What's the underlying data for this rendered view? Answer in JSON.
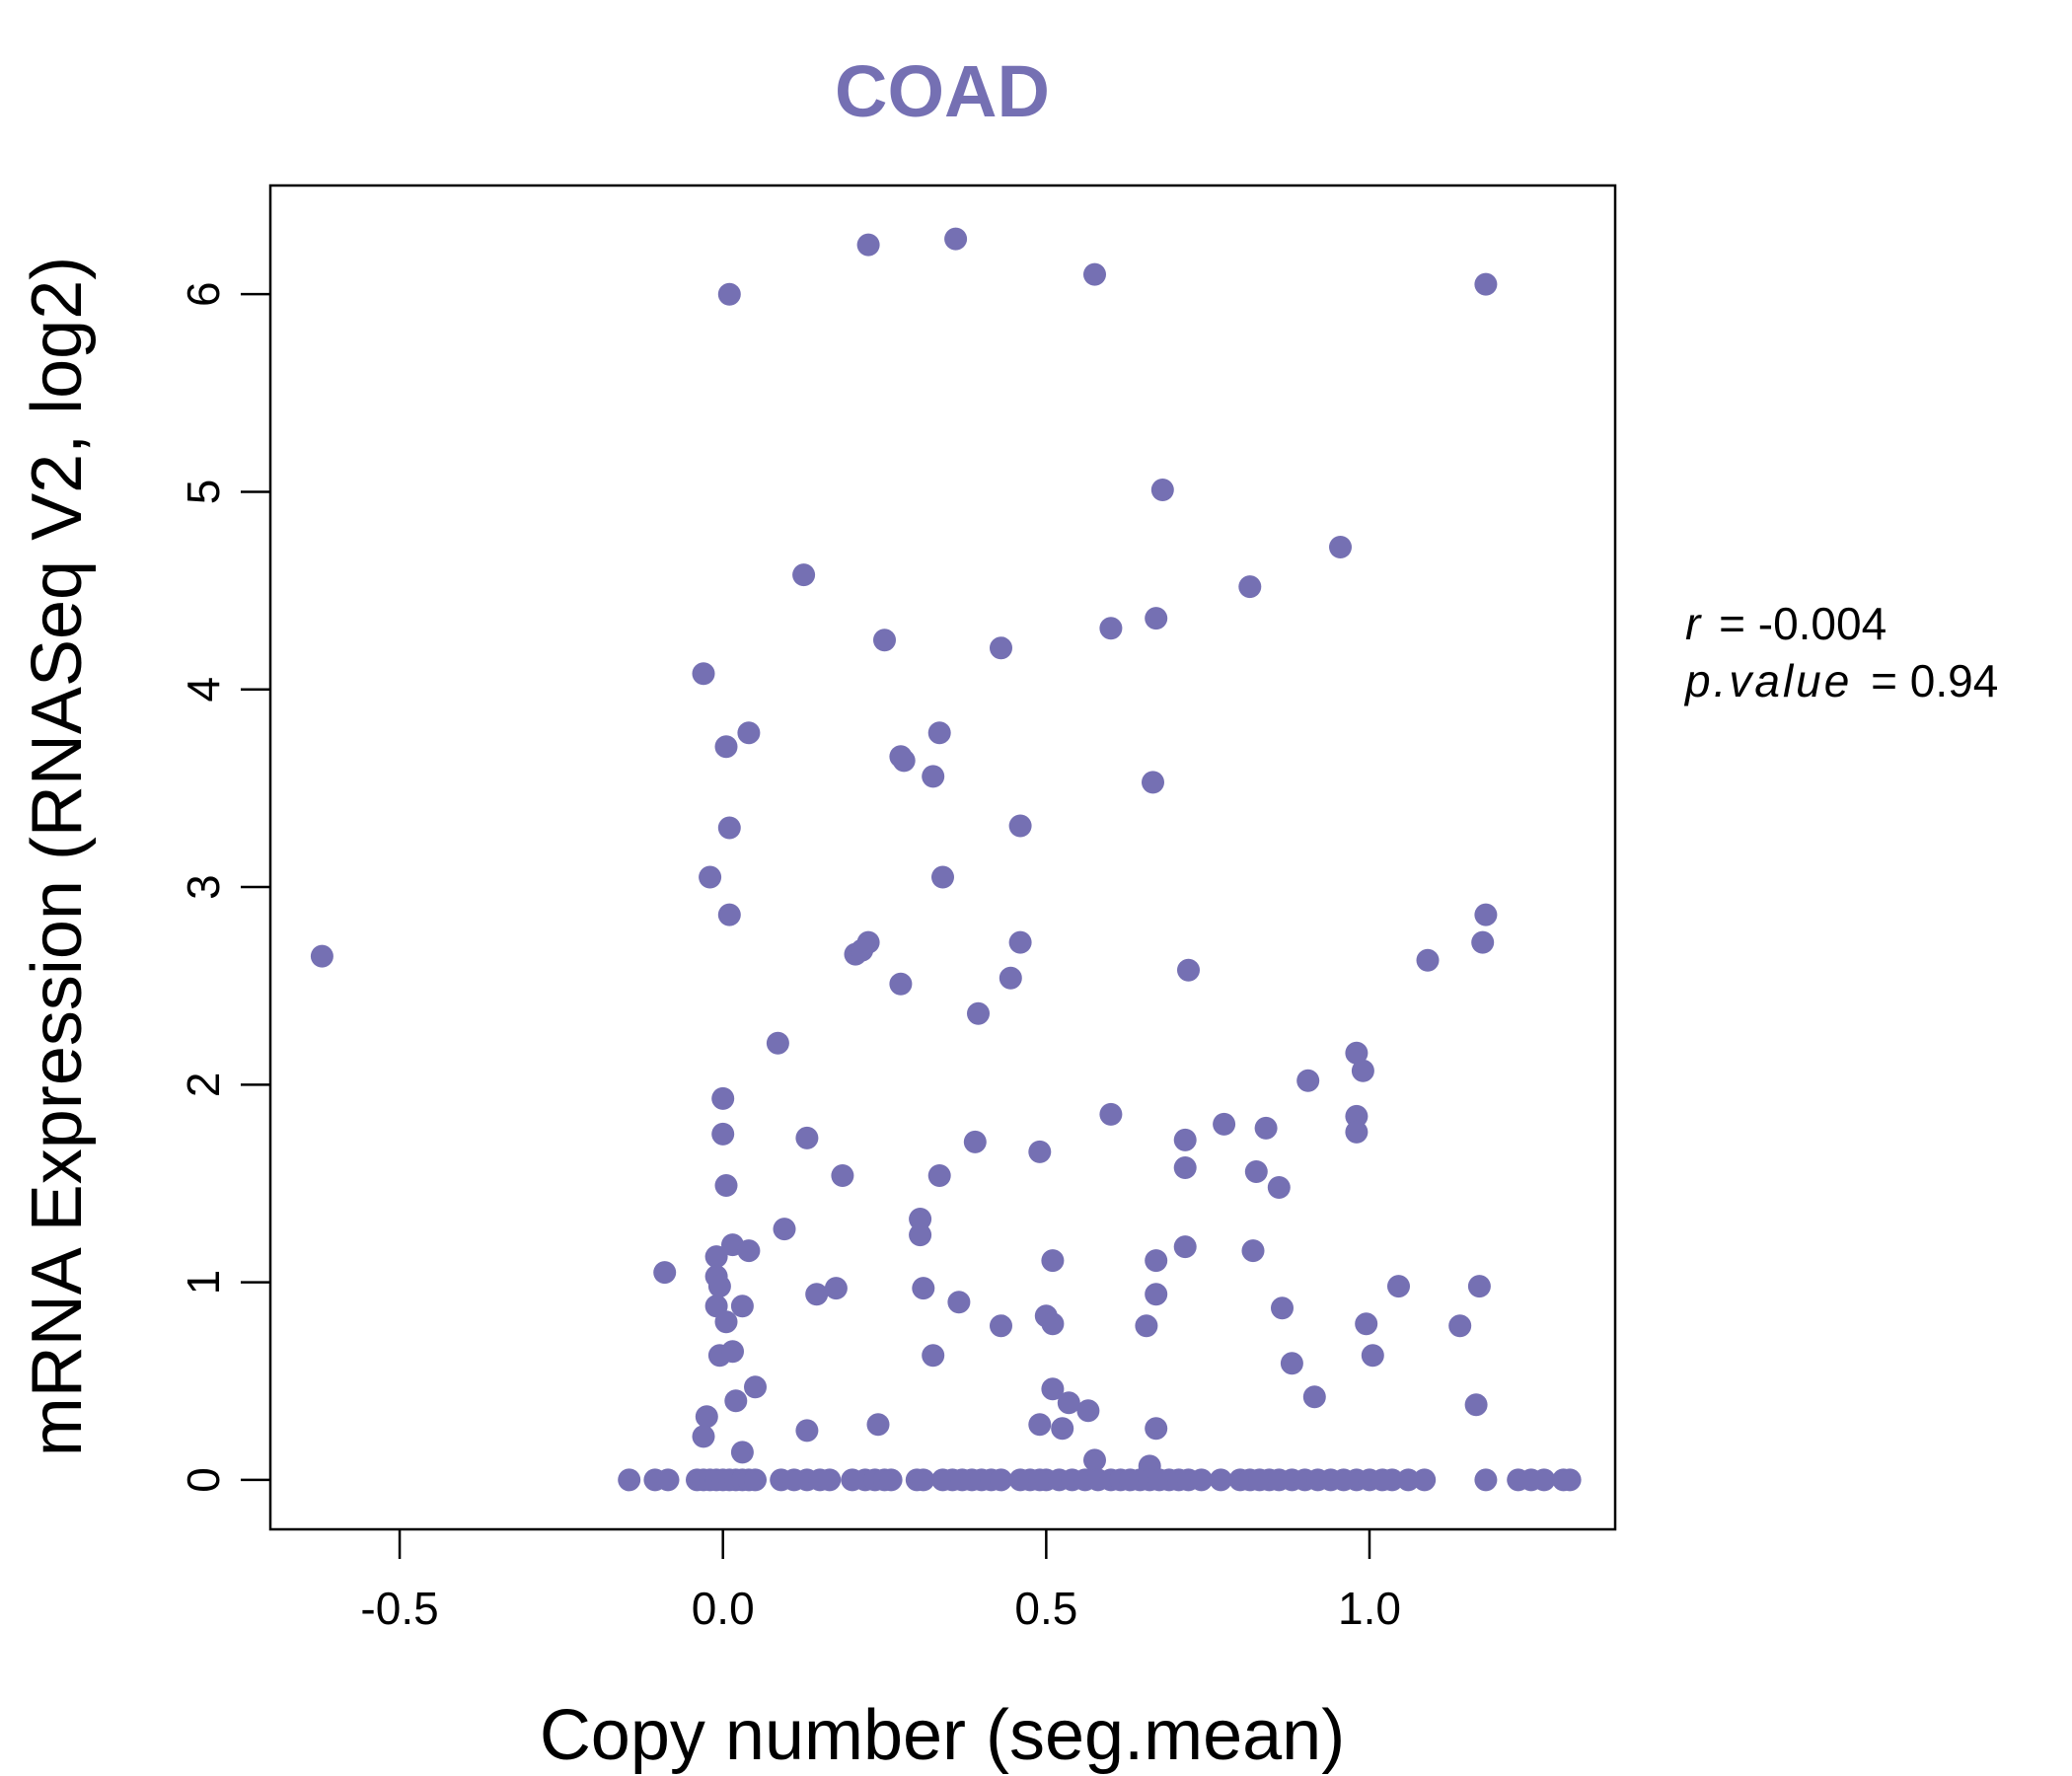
{
  "chart_data": {
    "type": "scatter",
    "title": "COAD",
    "xlabel": "Copy number (seg.mean)",
    "ylabel": "mRNA Expression (RNASeq V2, log2)",
    "xlim": [
      -0.7,
      1.38
    ],
    "ylim": [
      -0.25,
      6.55
    ],
    "x_ticks": [
      -0.5,
      0.0,
      0.5,
      1.0
    ],
    "x_tick_labels": [
      "-0.5",
      "0.0",
      "0.5",
      "1.0"
    ],
    "y_ticks": [
      0,
      1,
      2,
      3,
      4,
      5,
      6
    ],
    "y_tick_labels": [
      "0",
      "1",
      "2",
      "3",
      "4",
      "5",
      "6"
    ],
    "grid": false,
    "legend": "none",
    "annotations": {
      "r_label": "r",
      "r_value": "= -0.004",
      "p_label": "p.value",
      "p_value": "= 0.94"
    },
    "colors": {
      "points": "#7570b3",
      "title": "#7570b3",
      "axes": "#000000"
    },
    "points": [
      [
        -0.62,
        2.65
      ],
      [
        -0.09,
        1.05
      ],
      [
        -0.03,
        4.08
      ],
      [
        -0.02,
        3.05
      ],
      [
        -0.025,
        0.32
      ],
      [
        -0.03,
        0.22
      ],
      [
        -0.01,
        1.13
      ],
      [
        -0.01,
        1.03
      ],
      [
        -0.01,
        0.88
      ],
      [
        -0.005,
        0.98
      ],
      [
        -0.005,
        0.63
      ],
      [
        0.0,
        1.93
      ],
      [
        0.0,
        1.75
      ],
      [
        0.005,
        3.71
      ],
      [
        0.005,
        1.49
      ],
      [
        0.005,
        0.8
      ],
      [
        0.01,
        6.0
      ],
      [
        0.01,
        3.3
      ],
      [
        0.01,
        2.86
      ],
      [
        0.015,
        1.19
      ],
      [
        0.015,
        0.65
      ],
      [
        0.02,
        0.4
      ],
      [
        0.03,
        0.88
      ],
      [
        0.03,
        0.14
      ],
      [
        0.04,
        3.78
      ],
      [
        0.04,
        1.16
      ],
      [
        0.05,
        0.47
      ],
      [
        0.085,
        2.21
      ],
      [
        0.095,
        1.27
      ],
      [
        0.125,
        4.58
      ],
      [
        0.13,
        1.73
      ],
      [
        0.13,
        0.25
      ],
      [
        0.145,
        0.94
      ],
      [
        0.175,
        0.97
      ],
      [
        0.185,
        1.54
      ],
      [
        0.205,
        2.66
      ],
      [
        0.215,
        2.68
      ],
      [
        0.225,
        6.25
      ],
      [
        0.225,
        2.72
      ],
      [
        0.24,
        0.28
      ],
      [
        0.25,
        4.25
      ],
      [
        0.275,
        2.51
      ],
      [
        0.275,
        3.66
      ],
      [
        0.28,
        3.64
      ],
      [
        0.305,
        1.32
      ],
      [
        0.305,
        1.24
      ],
      [
        0.31,
        0.97
      ],
      [
        0.325,
        0.63
      ],
      [
        0.325,
        3.56
      ],
      [
        0.335,
        3.78
      ],
      [
        0.335,
        1.54
      ],
      [
        0.34,
        3.05
      ],
      [
        0.36,
        6.28
      ],
      [
        0.365,
        0.9
      ],
      [
        0.39,
        1.71
      ],
      [
        0.395,
        2.36
      ],
      [
        0.43,
        4.21
      ],
      [
        0.43,
        0.78
      ],
      [
        0.445,
        2.54
      ],
      [
        0.46,
        3.31
      ],
      [
        0.46,
        2.72
      ],
      [
        0.49,
        1.66
      ],
      [
        0.49,
        0.28
      ],
      [
        0.5,
        0.83
      ],
      [
        0.51,
        0.79
      ],
      [
        0.51,
        1.11
      ],
      [
        0.51,
        0.46
      ],
      [
        0.525,
        0.26
      ],
      [
        0.535,
        0.39
      ],
      [
        0.565,
        0.35
      ],
      [
        0.575,
        0.1
      ],
      [
        0.575,
        6.1
      ],
      [
        0.6,
        1.85
      ],
      [
        0.6,
        4.31
      ],
      [
        0.655,
        0.78
      ],
      [
        0.66,
        0.07
      ],
      [
        0.665,
        3.53
      ],
      [
        0.67,
        4.36
      ],
      [
        0.67,
        0.94
      ],
      [
        0.67,
        0.26
      ],
      [
        0.67,
        1.11
      ],
      [
        0.68,
        5.01
      ],
      [
        0.715,
        1.72
      ],
      [
        0.715,
        1.58
      ],
      [
        0.715,
        1.18
      ],
      [
        0.72,
        2.58
      ],
      [
        0.775,
        1.8
      ],
      [
        0.815,
        4.52
      ],
      [
        0.82,
        1.16
      ],
      [
        0.825,
        1.56
      ],
      [
        0.84,
        1.78
      ],
      [
        0.86,
        1.48
      ],
      [
        0.865,
        0.87
      ],
      [
        0.88,
        0.59
      ],
      [
        0.905,
        2.02
      ],
      [
        0.915,
        0.42
      ],
      [
        0.955,
        4.72
      ],
      [
        0.98,
        2.16
      ],
      [
        0.98,
        1.84
      ],
      [
        0.98,
        1.76
      ],
      [
        0.99,
        2.07
      ],
      [
        0.995,
        0.79
      ],
      [
        1.005,
        0.63
      ],
      [
        1.045,
        0.98
      ],
      [
        1.09,
        2.63
      ],
      [
        1.14,
        0.78
      ],
      [
        1.165,
        0.38
      ],
      [
        1.17,
        0.98
      ],
      [
        1.175,
        2.72
      ],
      [
        1.18,
        2.86
      ],
      [
        1.18,
        6.05
      ],
      [
        -0.145,
        0
      ],
      [
        -0.105,
        0
      ],
      [
        -0.085,
        0
      ],
      [
        -0.04,
        0
      ],
      [
        -0.03,
        0
      ],
      [
        -0.02,
        0
      ],
      [
        -0.01,
        0
      ],
      [
        0.0,
        0
      ],
      [
        0.01,
        0
      ],
      [
        0.02,
        0
      ],
      [
        0.03,
        0
      ],
      [
        0.04,
        0
      ],
      [
        0.05,
        0
      ],
      [
        0.09,
        0
      ],
      [
        0.11,
        0
      ],
      [
        0.13,
        0
      ],
      [
        0.15,
        0
      ],
      [
        0.165,
        0
      ],
      [
        0.2,
        0
      ],
      [
        0.22,
        0
      ],
      [
        0.235,
        0
      ],
      [
        0.25,
        0
      ],
      [
        0.26,
        0
      ],
      [
        0.3,
        0
      ],
      [
        0.31,
        0
      ],
      [
        0.34,
        0
      ],
      [
        0.355,
        0
      ],
      [
        0.37,
        0
      ],
      [
        0.385,
        0
      ],
      [
        0.4,
        0
      ],
      [
        0.415,
        0
      ],
      [
        0.43,
        0
      ],
      [
        0.46,
        0
      ],
      [
        0.475,
        0
      ],
      [
        0.49,
        0
      ],
      [
        0.5,
        0
      ],
      [
        0.52,
        0
      ],
      [
        0.54,
        0
      ],
      [
        0.56,
        0
      ],
      [
        0.58,
        0
      ],
      [
        0.6,
        0
      ],
      [
        0.615,
        0
      ],
      [
        0.63,
        0
      ],
      [
        0.645,
        0
      ],
      [
        0.66,
        0
      ],
      [
        0.675,
        0
      ],
      [
        0.69,
        0
      ],
      [
        0.705,
        0
      ],
      [
        0.72,
        0
      ],
      [
        0.74,
        0
      ],
      [
        0.77,
        0
      ],
      [
        0.8,
        0
      ],
      [
        0.815,
        0
      ],
      [
        0.83,
        0
      ],
      [
        0.845,
        0
      ],
      [
        0.86,
        0
      ],
      [
        0.88,
        0
      ],
      [
        0.9,
        0
      ],
      [
        0.92,
        0
      ],
      [
        0.94,
        0
      ],
      [
        0.96,
        0
      ],
      [
        0.98,
        0
      ],
      [
        1.0,
        0
      ],
      [
        1.02,
        0
      ],
      [
        1.035,
        0
      ],
      [
        1.06,
        0
      ],
      [
        1.085,
        0
      ],
      [
        1.18,
        0
      ],
      [
        1.23,
        0
      ],
      [
        1.25,
        0
      ],
      [
        1.27,
        0
      ],
      [
        1.3,
        0
      ],
      [
        1.31,
        0
      ]
    ]
  }
}
